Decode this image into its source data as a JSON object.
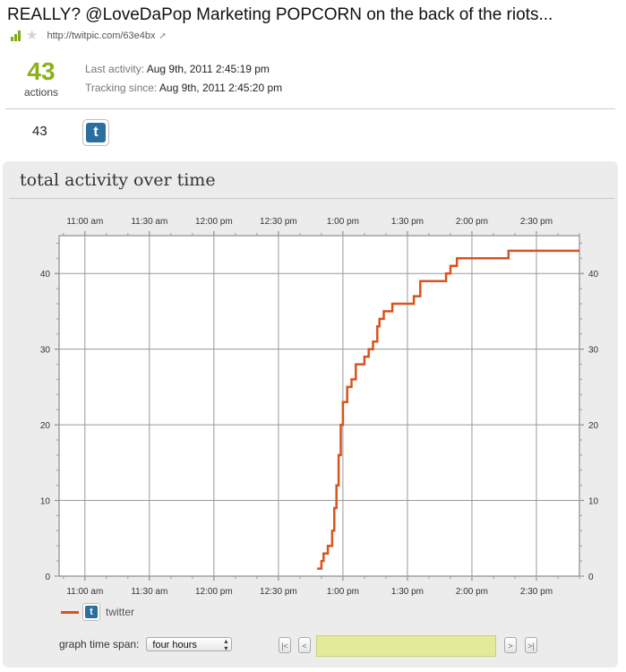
{
  "page": {
    "title": "REALLY? @LoveDaPop Marketing POPCORN on the back of the riots...",
    "url": "http://twitpic.com/63e4bx",
    "icons": {
      "rank": "signal-bars-icon",
      "favorite": "star-icon",
      "external": "external-link-icon"
    }
  },
  "summary": {
    "count": "43",
    "count_label": "actions",
    "last_activity_label": "Last activity:",
    "last_activity_value": "Aug 9th, 2011 2:45:19 pm",
    "tracking_label": "Tracking since:",
    "tracking_value": "Aug 9th, 2011 2:45:20 pm"
  },
  "services": [
    {
      "count": "43",
      "name": "twitter",
      "icon": "twitter-icon",
      "glyph": "t"
    }
  ],
  "panel": {
    "title": "total activity over time"
  },
  "chart_data": {
    "type": "line",
    "title": "total activity over time",
    "xlabel": "",
    "ylabel": "",
    "x_ticks": [
      "11:00 am",
      "11:30 am",
      "12:00 pm",
      "12:30 pm",
      "1:00 pm",
      "1:30 pm",
      "2:00 pm",
      "2:30 pm"
    ],
    "y_ticks": [
      0,
      10,
      20,
      30,
      40
    ],
    "xlim": [
      "10:48 am",
      "2:50 pm"
    ],
    "ylim": [
      0,
      45
    ],
    "grid": true,
    "legend_position": "bottom-left",
    "series": [
      {
        "name": "twitter",
        "color": "#d9531e",
        "step": true,
        "points": [
          [
            "12:48 pm",
            1
          ],
          [
            "12:50 pm",
            2
          ],
          [
            "12:51 pm",
            3
          ],
          [
            "12:53 pm",
            4
          ],
          [
            "12:55 pm",
            6
          ],
          [
            "12:56 pm",
            9
          ],
          [
            "12:57 pm",
            12
          ],
          [
            "12:58 pm",
            16
          ],
          [
            "12:59 pm",
            20
          ],
          [
            "1:00 pm",
            23
          ],
          [
            "1:02 pm",
            25
          ],
          [
            "1:04 pm",
            26
          ],
          [
            "1:06 pm",
            28
          ],
          [
            "1:10 pm",
            29
          ],
          [
            "1:12 pm",
            30
          ],
          [
            "1:14 pm",
            31
          ],
          [
            "1:16 pm",
            33
          ],
          [
            "1:17 pm",
            34
          ],
          [
            "1:19 pm",
            35
          ],
          [
            "1:23 pm",
            36
          ],
          [
            "1:33 pm",
            37
          ],
          [
            "1:36 pm",
            39
          ],
          [
            "1:48 pm",
            40
          ],
          [
            "1:50 pm",
            41
          ],
          [
            "1:53 pm",
            42
          ],
          [
            "2:17 pm",
            43
          ],
          [
            "2:50 pm",
            43
          ]
        ]
      }
    ]
  },
  "controls": {
    "span_label": "graph time span:",
    "span_value": "four hours",
    "first_label": "|<",
    "prev_label": "<",
    "next_label": ">",
    "last_label": ">|"
  }
}
